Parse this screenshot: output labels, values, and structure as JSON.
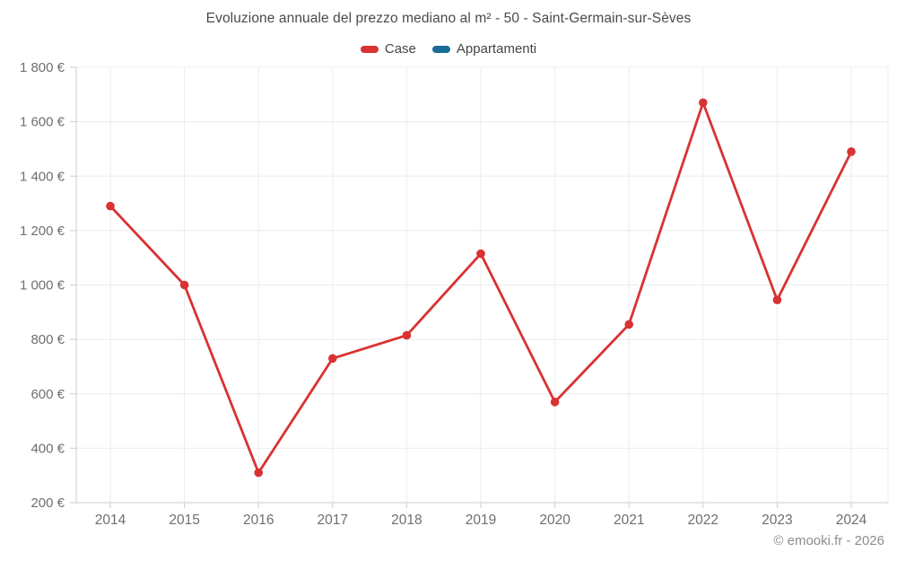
{
  "header": {
    "title": "Evoluzione annuale del prezzo mediano al m² - 50 - Saint-Germain-sur-Sèves"
  },
  "footer": {
    "credit": "© emooki.fr - 2026"
  },
  "legend": {
    "items": [
      {
        "label": "Case",
        "color": "#d93232"
      },
      {
        "label": "Appartamenti",
        "color": "#1a6d96"
      }
    ]
  },
  "colors": {
    "case_series": "#d93232",
    "appartamenti_series": "#1a6d96",
    "gridline": "#ececec",
    "axis_line": "#cccccc",
    "tick_label": "#6f6f6f",
    "title_text": "#4a4a4a"
  },
  "chart_data": {
    "type": "line",
    "title": "Evoluzione annuale del prezzo mediano al m² - 50 - Saint-Germain-sur-Sèves",
    "categories": [
      "2014",
      "2015",
      "2016",
      "2017",
      "2018",
      "2019",
      "2020",
      "2021",
      "2022",
      "2023",
      "2024"
    ],
    "series": [
      {
        "name": "Case",
        "color": "#d93232",
        "values": [
          1290,
          1000,
          310,
          730,
          815,
          1115,
          570,
          855,
          1670,
          945,
          1490
        ]
      },
      {
        "name": "Appartamenti",
        "color": "#1a6d96",
        "values": [
          null,
          null,
          null,
          null,
          null,
          null,
          null,
          null,
          null,
          null,
          null
        ]
      }
    ],
    "xlabel": "",
    "ylabel": "",
    "ylim": [
      200,
      1800
    ],
    "ytick_step": 200,
    "yticks": [
      {
        "value": 200,
        "label": "200 €"
      },
      {
        "value": 400,
        "label": "400 €"
      },
      {
        "value": 600,
        "label": "600 €"
      },
      {
        "value": 800,
        "label": "800 €"
      },
      {
        "value": 1000,
        "label": "1 000 €"
      },
      {
        "value": 1200,
        "label": "1 200 €"
      },
      {
        "value": 1400,
        "label": "1 400 €"
      },
      {
        "value": 1600,
        "label": "1 600 €"
      },
      {
        "value": 1800,
        "label": "1 800 €"
      }
    ],
    "grid": true,
    "legend_position": "top",
    "annotations": [
      "© emooki.fr - 2026"
    ]
  }
}
